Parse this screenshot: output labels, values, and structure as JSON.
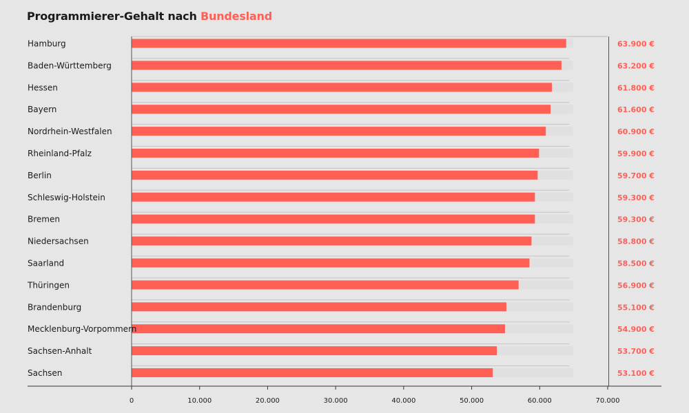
{
  "title": {
    "prefix": "Programmierer-Gehalt nach",
    "highlight": "Bundesland"
  },
  "colors": {
    "bar": "#ff5f55",
    "track": "#e0e0e0",
    "value_label": "#ff5f55",
    "background": "#e6e6e6"
  },
  "chart_data": {
    "type": "bar",
    "orientation": "horizontal",
    "title": "Programmierer-Gehalt nach Bundesland",
    "xlabel": "",
    "ylabel": "",
    "xlim": [
      0,
      70000
    ],
    "x_ticks": [
      0,
      10000,
      20000,
      30000,
      40000,
      50000,
      60000,
      70000
    ],
    "x_tick_labels": [
      "0",
      "10.000",
      "20.000",
      "30.000",
      "40.000",
      "50.000",
      "60.000",
      "70.000"
    ],
    "track_max": 64900,
    "categories": [
      "Hamburg",
      "Baden-Württemberg",
      "Hessen",
      "Bayern",
      "Nordrhein-Westfalen",
      "Rheinland-Pfalz",
      "Berlin",
      "Schleswig-Holstein",
      "Bremen",
      "Niedersachsen",
      "Saarland",
      "Thüringen",
      "Brandenburg",
      "Mecklenburg-Vorpommern",
      "Sachsen-Anhalt",
      "Sachsen"
    ],
    "values": [
      63900,
      63200,
      61800,
      61600,
      60900,
      59900,
      59700,
      59300,
      59300,
      58800,
      58500,
      56900,
      55100,
      54900,
      53700,
      53100
    ],
    "value_labels": [
      "63.900 €",
      "63.200 €",
      "61.800 €",
      "61.600 €",
      "60.900 €",
      "59.900 €",
      "59.700 €",
      "59.300 €",
      "59.300 €",
      "58.800 €",
      "58.500 €",
      "56.900 €",
      "55.100 €",
      "54.900 €",
      "53.700 €",
      "53.100 €"
    ],
    "grid": false
  }
}
